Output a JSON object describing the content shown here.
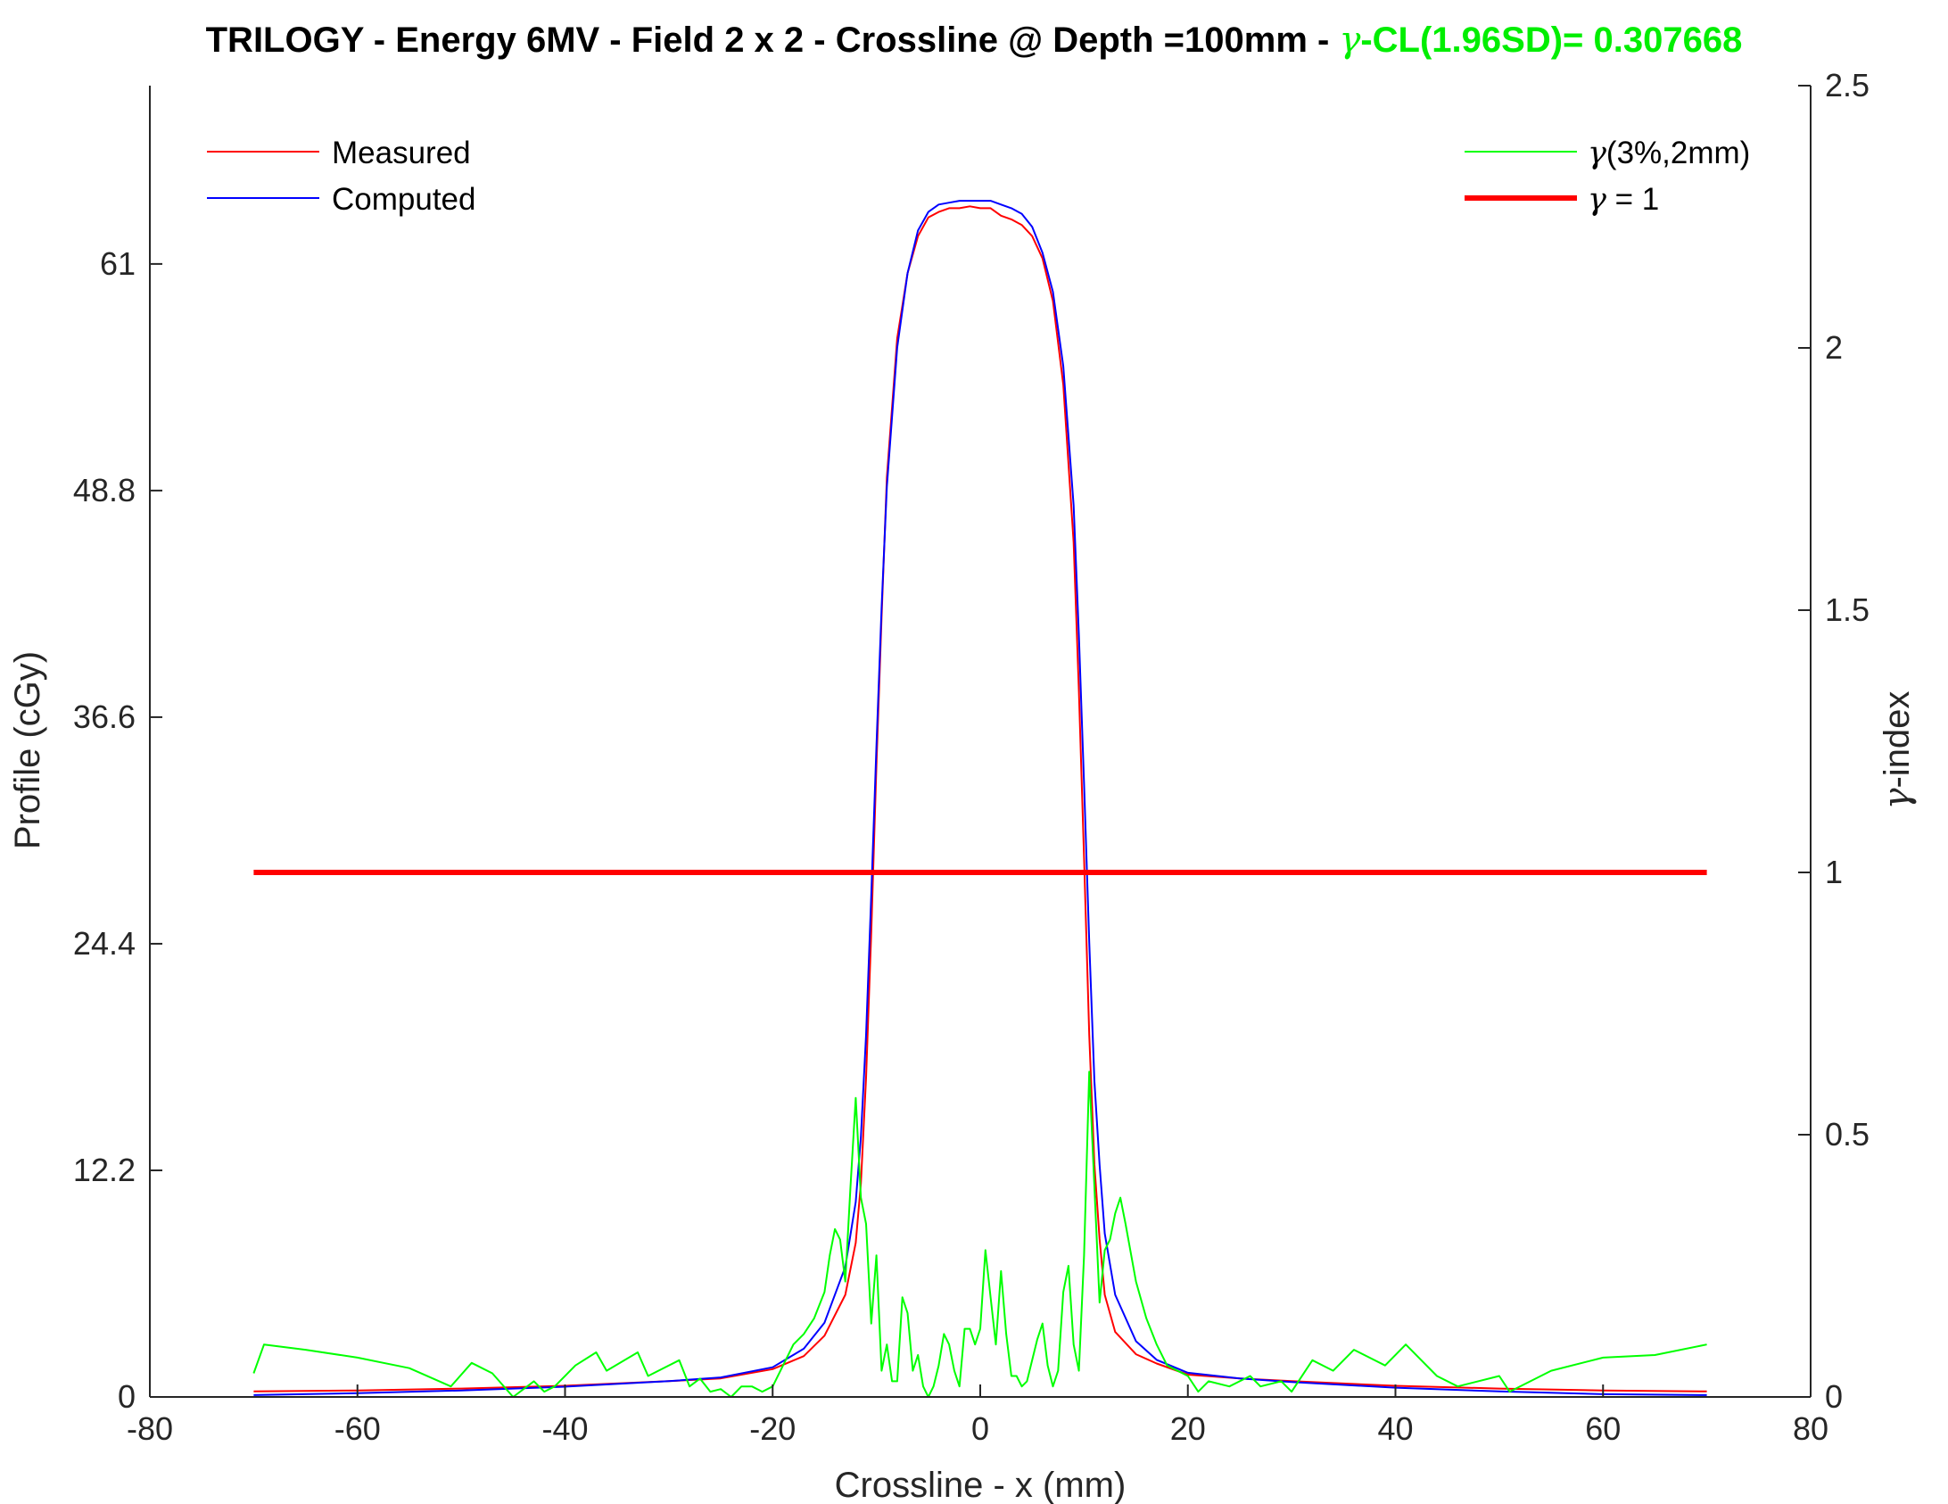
{
  "chart_data": {
    "type": "line",
    "title": {
      "main": "TRILOGY - Energy 6MV - Field 2 x 2 - Crossline @ Depth =100mm - ",
      "gamma_prefix": "γ",
      "gamma_label": "-CL(1.96SD)= 0.307668",
      "gamma_color": "#00ee00"
    },
    "xlabel": "Crossline - x (mm)",
    "ylabel": "Profile (cGy)",
    "y2label": "-index",
    "y2label_prefix": "γ",
    "xlim": [
      -80,
      80
    ],
    "ylim": [
      0,
      70.6
    ],
    "y2lim": [
      0,
      2.5
    ],
    "xticks": [
      "-80",
      "-60",
      "-40",
      "-20",
      "0",
      "20",
      "40",
      "60",
      "80"
    ],
    "yticks": [
      "0",
      "12.2",
      "24.4",
      "36.6",
      "48.8",
      "61"
    ],
    "y2ticks": [
      "0",
      "0.5",
      "1",
      "1.5",
      "2",
      "2.5"
    ],
    "grid": false,
    "legend_left": {
      "position": "top-left",
      "entries": [
        {
          "label": "Measured",
          "color": "#ff0000"
        },
        {
          "label": "Computed",
          "color": "#0000ff"
        }
      ]
    },
    "legend_right": {
      "position": "top-right",
      "entries": [
        {
          "prefix": "γ",
          "label": "(3%,2mm)",
          "color": "#00ff00"
        },
        {
          "prefix": "γ",
          "label": " = 1",
          "color": "#ff0000"
        }
      ]
    },
    "series": [
      {
        "name": "Measured",
        "axis": "left",
        "color": "#ff0000",
        "x": [
          -70,
          -60,
          -50,
          -40,
          -30,
          -25,
          -20,
          -17,
          -15,
          -13,
          -12,
          -11.5,
          -11,
          -10.5,
          -10,
          -9.5,
          -9,
          -8,
          -7,
          -6,
          -5,
          -4,
          -3,
          -2,
          -1,
          0,
          1,
          2,
          3,
          4,
          5,
          6,
          7,
          8,
          9,
          9.5,
          10,
          10.5,
          11,
          11.5,
          12,
          13,
          15,
          17,
          20,
          25,
          30,
          40,
          50,
          60,
          70
        ],
        "y": [
          0.3,
          0.35,
          0.45,
          0.6,
          0.85,
          1.0,
          1.5,
          2.2,
          3.3,
          5.5,
          8.3,
          11.5,
          17.2,
          25.0,
          34.0,
          42.0,
          49.5,
          57.0,
          60.5,
          62.5,
          63.5,
          63.8,
          64.0,
          64.0,
          64.1,
          64.0,
          64.0,
          63.6,
          63.4,
          63.1,
          62.5,
          61.3,
          59.0,
          54.5,
          46.0,
          38.0,
          29.0,
          19.5,
          12.5,
          8.5,
          5.5,
          3.5,
          2.3,
          1.8,
          1.2,
          1.0,
          0.85,
          0.6,
          0.45,
          0.35,
          0.3
        ]
      },
      {
        "name": "Computed",
        "axis": "left",
        "color": "#0000ff",
        "x": [
          -70,
          -60,
          -50,
          -40,
          -30,
          -25,
          -20,
          -17,
          -15,
          -13,
          -12,
          -11.5,
          -11,
          -10.5,
          -10,
          -9.5,
          -9,
          -8,
          -7,
          -6,
          -5,
          -4,
          -3,
          -2,
          -1,
          0,
          1,
          2,
          3,
          4,
          5,
          6,
          7,
          8,
          9,
          9.5,
          10,
          10.5,
          11,
          11.5,
          12,
          13,
          15,
          17,
          20,
          25,
          30,
          40,
          50,
          60,
          70
        ],
        "y": [
          0.1,
          0.2,
          0.35,
          0.55,
          0.85,
          1.05,
          1.6,
          2.6,
          4.0,
          7.0,
          10.5,
          14.0,
          19.5,
          27.0,
          35.0,
          42.5,
          49.0,
          56.5,
          60.5,
          62.8,
          63.8,
          64.2,
          64.3,
          64.4,
          64.4,
          64.4,
          64.4,
          64.2,
          64.0,
          63.7,
          63.0,
          61.6,
          59.5,
          55.5,
          48.0,
          41.0,
          33.0,
          24.5,
          17.0,
          12.5,
          8.8,
          5.5,
          3.0,
          2.0,
          1.3,
          1.0,
          0.8,
          0.5,
          0.3,
          0.15,
          0.1
        ]
      },
      {
        "name": "γ(3%,2mm)",
        "axis": "right",
        "color": "#00ff00",
        "x": [
          -70,
          -69,
          -65,
          -60,
          -55,
          -51,
          -49,
          -47,
          -45,
          -43,
          -42,
          -41,
          -39,
          -37,
          -36,
          -33,
          -32,
          -29,
          -28,
          -27,
          -26,
          -25,
          -24,
          -23,
          -22,
          -21,
          -20,
          -19,
          -18,
          -17,
          -16,
          -15,
          -14.5,
          -14,
          -13.5,
          -13,
          -12.5,
          -12,
          -11.5,
          -11,
          -10.5,
          -10,
          -9.5,
          -9,
          -8.5,
          -8,
          -7.5,
          -7,
          -6.5,
          -6,
          -5.5,
          -5,
          -4.5,
          -4,
          -3.5,
          -3,
          -2.5,
          -2,
          -1.5,
          -1,
          -0.5,
          0,
          0.5,
          1,
          1.5,
          2,
          2.5,
          3,
          3.5,
          4,
          4.5,
          5,
          5.5,
          6,
          6.5,
          7,
          7.5,
          8,
          8.5,
          9,
          9.5,
          10,
          10.5,
          11,
          11.5,
          12,
          12.5,
          13,
          13.5,
          14,
          15,
          16,
          17,
          18,
          20,
          21,
          22,
          24,
          26,
          27,
          29,
          30,
          32,
          34,
          36,
          39,
          41,
          44,
          46,
          50,
          51,
          55,
          60,
          65,
          70
        ],
        "y": [
          0.045,
          0.1,
          0.09,
          0.075,
          0.055,
          0.02,
          0.065,
          0.045,
          0.0,
          0.03,
          0.01,
          0.02,
          0.06,
          0.085,
          0.05,
          0.085,
          0.04,
          0.07,
          0.02,
          0.035,
          0.01,
          0.015,
          0.0,
          0.02,
          0.02,
          0.01,
          0.02,
          0.06,
          0.1,
          0.12,
          0.15,
          0.2,
          0.27,
          0.32,
          0.3,
          0.22,
          0.4,
          0.57,
          0.38,
          0.33,
          0.14,
          0.27,
          0.05,
          0.1,
          0.03,
          0.03,
          0.19,
          0.16,
          0.05,
          0.08,
          0.02,
          0.0,
          0.02,
          0.06,
          0.12,
          0.1,
          0.05,
          0.02,
          0.13,
          0.13,
          0.1,
          0.13,
          0.28,
          0.19,
          0.1,
          0.24,
          0.12,
          0.04,
          0.04,
          0.02,
          0.03,
          0.07,
          0.11,
          0.14,
          0.06,
          0.02,
          0.05,
          0.2,
          0.25,
          0.1,
          0.05,
          0.27,
          0.62,
          0.4,
          0.18,
          0.28,
          0.3,
          0.35,
          0.38,
          0.33,
          0.22,
          0.15,
          0.1,
          0.06,
          0.04,
          0.01,
          0.03,
          0.02,
          0.04,
          0.02,
          0.03,
          0.01,
          0.07,
          0.05,
          0.09,
          0.06,
          0.1,
          0.04,
          0.02,
          0.04,
          0.01,
          0.05,
          0.075,
          0.08,
          0.1
        ]
      },
      {
        "name": "γ = 1",
        "axis": "right",
        "color": "#ff0000",
        "x": [
          -70,
          70
        ],
        "y": [
          1,
          1
        ]
      }
    ]
  }
}
